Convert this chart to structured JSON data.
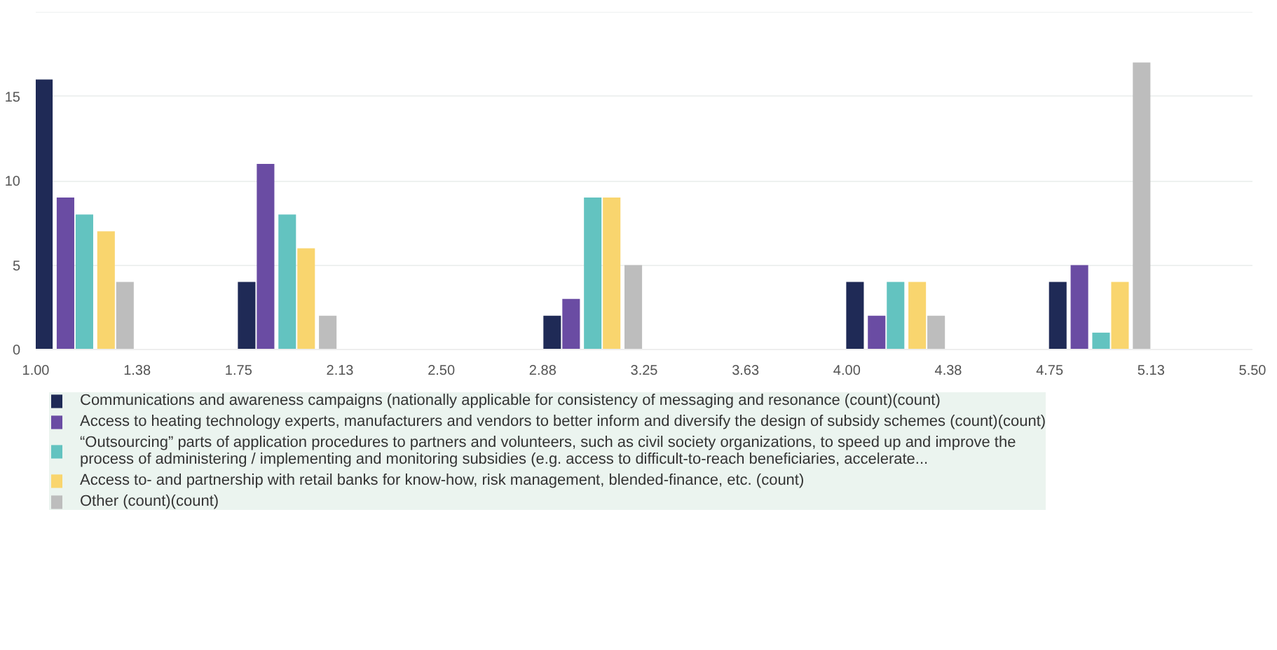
{
  "chart_data": {
    "type": "bar",
    "xlim": [
      1.0,
      5.5
    ],
    "xticks": [
      {
        "value": 1.0,
        "label": "1.00"
      },
      {
        "value": 1.375,
        "label": "1.38"
      },
      {
        "value": 1.75,
        "label": "1.75"
      },
      {
        "value": 2.125,
        "label": "2.13"
      },
      {
        "value": 2.5,
        "label": "2.50"
      },
      {
        "value": 2.875,
        "label": "2.88"
      },
      {
        "value": 3.25,
        "label": "3.25"
      },
      {
        "value": 3.625,
        "label": "3.63"
      },
      {
        "value": 4.0,
        "label": "4.00"
      },
      {
        "value": 4.375,
        "label": "4.38"
      },
      {
        "value": 4.75,
        "label": "4.75"
      },
      {
        "value": 5.125,
        "label": "5.13"
      },
      {
        "value": 5.5,
        "label": "5.50"
      }
    ],
    "ylim": [
      0,
      20
    ],
    "yticks": [
      0,
      5,
      10,
      15
    ],
    "grid": "y",
    "legend": "bottom",
    "series": [
      {
        "name": "Communications and awareness campaigns (nationally applicable for consistency of messaging and resonance (count)(count)",
        "color": "#1f2a56",
        "x": [
          1.03,
          1.78,
          2.91,
          4.03,
          4.78
        ],
        "values": [
          16,
          4,
          2,
          4,
          4
        ]
      },
      {
        "name": "Access to heating technology experts, manufacturers and vendors to better inform and diversify the design of subsidy schemes (count)(count)",
        "color": "#6a4ca3",
        "x": [
          1.11,
          1.85,
          2.98,
          4.11,
          4.86
        ],
        "values": [
          9,
          11,
          3,
          2,
          5
        ]
      },
      {
        "name": "“Outsourcing” parts of application procedures to partners and volunteers, such as civil society organizations, to speed up and improve the process of administering / implementing and monitoring subsidies (e.g. access to difficult-to-reach beneficiaries, accelerate...",
        "color": "#63c3c0",
        "x": [
          1.18,
          1.93,
          3.06,
          4.18,
          4.94
        ],
        "values": [
          8,
          8,
          9,
          4,
          1
        ]
      },
      {
        "name": "Access to- and partnership with retail banks for know-how, risk management, blended-finance, etc. (count)",
        "color": "#f9d56e",
        "x": [
          1.26,
          2.0,
          3.13,
          4.26,
          5.01
        ],
        "values": [
          7,
          6,
          9,
          4,
          4
        ]
      },
      {
        "name": "Other (count)(count)",
        "color": "#bdbdbd",
        "x": [
          1.33,
          2.08,
          3.21,
          4.33,
          5.09
        ],
        "values": [
          4,
          2,
          5,
          2,
          17
        ]
      }
    ]
  }
}
